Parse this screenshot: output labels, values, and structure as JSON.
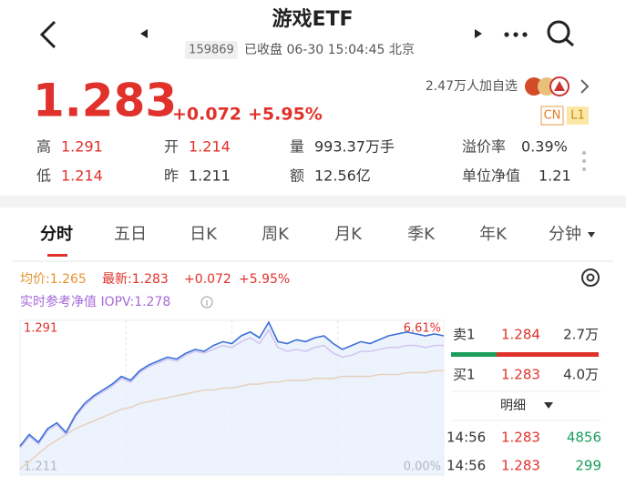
{
  "header": {
    "title": "游戏ETF",
    "code": "159869",
    "status": "已收盘 06-30 15:04:45 北京"
  },
  "quote": {
    "price": "1.283",
    "change": "+0.072",
    "change_pct": "+5.95%",
    "watchlist": "2.47万人加自选",
    "badges": [
      "CN",
      "L1"
    ]
  },
  "stats": [
    {
      "label": "高",
      "value": "1.291"
    },
    {
      "label": "开",
      "value": "1.214"
    },
    {
      "label": "量",
      "value": "993.37万手"
    },
    {
      "label": "溢价率",
      "value": "0.39%"
    },
    {
      "label": "低",
      "value": "1.214"
    },
    {
      "label": "昨",
      "value": "1.211"
    },
    {
      "label": "额",
      "value": "12.56亿"
    },
    {
      "label": "单位净值",
      "value": "1.21"
    }
  ],
  "tabs": [
    "分时",
    "五日",
    "日K",
    "周K",
    "月K",
    "季K",
    "年K",
    "分钟"
  ],
  "legend": {
    "avg": "均价:1.265",
    "latest": "最新:1.283",
    "change": "+0.072",
    "change_pct": "+5.95%",
    "iopv": "实时参考净值 IOPV:1.278"
  },
  "chart_data": {
    "type": "line",
    "ylim": [
      1.211,
      1.291
    ],
    "yticks": [
      1.211,
      1.291
    ],
    "y2lim": [
      0,
      6.61
    ],
    "y2ticks": [
      {
        "value": 0,
        "label": "0.00%"
      },
      {
        "value": 6.61,
        "label": "6.61%"
      }
    ],
    "series": [
      {
        "color": "#3a6fd8",
        "values": [
          1.226,
          1.232,
          1.228,
          1.235,
          1.238,
          1.233,
          1.242,
          1.248,
          1.252,
          1.255,
          1.258,
          1.262,
          1.26,
          1.265,
          1.268,
          1.27,
          1.272,
          1.271,
          1.274,
          1.276,
          1.275,
          1.278,
          1.28,
          1.279,
          1.283,
          1.285,
          1.282,
          1.29,
          1.28,
          1.279,
          1.281,
          1.28,
          1.282,
          1.283,
          1.279,
          1.276,
          1.278,
          1.28,
          1.279,
          1.281,
          1.283,
          1.284,
          1.285,
          1.284,
          1.283,
          1.284,
          1.283
        ]
      },
      {
        "color": "#a66ad8",
        "values": [
          1.225,
          1.231,
          1.227,
          1.234,
          1.237,
          1.232,
          1.241,
          1.247,
          1.251,
          1.254,
          1.257,
          1.261,
          1.259,
          1.264,
          1.267,
          1.269,
          1.271,
          1.27,
          1.273,
          1.275,
          1.274,
          1.276,
          1.278,
          1.277,
          1.28,
          1.282,
          1.279,
          1.286,
          1.277,
          1.275,
          1.276,
          1.275,
          1.277,
          1.278,
          1.274,
          1.272,
          1.273,
          1.275,
          1.275,
          1.276,
          1.277,
          1.277,
          1.278,
          1.278,
          1.277,
          1.278,
          1.278
        ]
      },
      {
        "color": "#e8922e",
        "values": [
          1.214,
          1.218,
          1.222,
          1.226,
          1.229,
          1.232,
          1.235,
          1.237,
          1.239,
          1.241,
          1.243,
          1.245,
          1.246,
          1.248,
          1.249,
          1.25,
          1.251,
          1.252,
          1.253,
          1.254,
          1.255,
          1.255,
          1.256,
          1.256,
          1.257,
          1.258,
          1.258,
          1.259,
          1.259,
          1.26,
          1.26,
          1.26,
          1.261,
          1.261,
          1.261,
          1.262,
          1.262,
          1.262,
          1.262,
          1.263,
          1.263,
          1.263,
          1.264,
          1.264,
          1.264,
          1.265,
          1.265
        ]
      }
    ]
  },
  "order_book": {
    "asks": [
      {
        "label": "卖1",
        "price": "1.284",
        "volume": "2.7万"
      }
    ],
    "bids": [
      {
        "label": "买1",
        "price": "1.283",
        "volume": "4.0万"
      }
    ],
    "detail": "明细",
    "trades": [
      {
        "time": "14:56",
        "price": "1.283",
        "volume": "4856"
      },
      {
        "time": "14:56",
        "price": "1.283",
        "volume": "299"
      }
    ]
  }
}
